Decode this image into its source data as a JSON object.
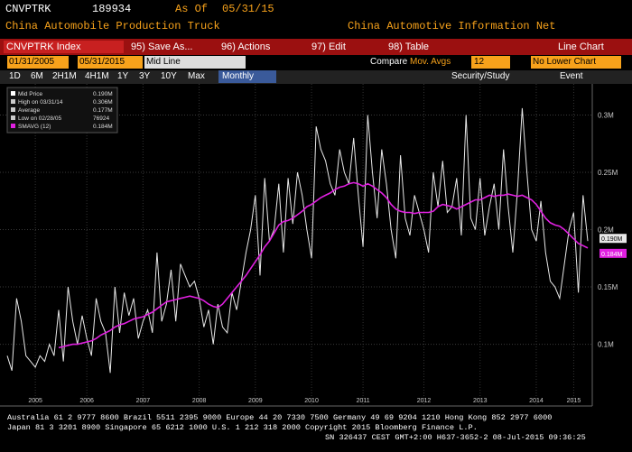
{
  "header": {
    "ticker": "CNVPTRK",
    "code": "189934",
    "as_of_label": "As Of",
    "as_of": "05/31/15",
    "name": "China Automobile Production Truck",
    "source": "China Automotive Information Net"
  },
  "toolbar": {
    "security": "CNVPTRK Index",
    "buttons": [
      "95) Save As...",
      "96) Actions",
      "97) Edit",
      "98) Table"
    ],
    "view": "Line Chart"
  },
  "controls": {
    "start": "01/31/2005",
    "end": "05/31/2015",
    "style": "Mid Line",
    "compare": "Compare",
    "studies": "Mov. Avgs",
    "period": "12",
    "lower": "No Lower Chart"
  },
  "ranges": {
    "buttons": [
      "1D",
      "6M",
      "2H1M",
      "4H1M",
      "1Y",
      "3Y",
      "10Y",
      "Max"
    ],
    "frequency": "Monthly",
    "study": "Security/Study",
    "event": "Event"
  },
  "chart_data": {
    "type": "line",
    "categories": [
      null,
      null,
      null,
      null,
      null,
      null,
      "2005",
      null,
      null,
      null,
      null,
      null,
      null,
      null,
      null,
      null,
      null,
      "2006",
      null,
      null,
      null,
      null,
      null,
      null,
      null,
      null,
      null,
      null,
      null,
      "2007",
      null,
      null,
      null,
      null,
      null,
      null,
      null,
      null,
      null,
      null,
      null,
      "2008",
      null,
      null,
      null,
      null,
      null,
      null,
      null,
      null,
      null,
      null,
      null,
      "2009",
      null,
      null,
      null,
      null,
      null,
      null,
      null,
      null,
      null,
      null,
      null,
      "2010",
      null,
      null,
      null,
      null,
      null,
      null,
      null,
      null,
      null,
      null,
      "2011",
      null,
      null,
      null,
      null,
      null,
      null,
      null,
      null,
      null,
      null,
      null,
      null,
      "2012",
      null,
      null,
      null,
      null,
      null,
      null,
      null,
      null,
      null,
      null,
      null,
      "2013",
      null,
      null,
      null,
      null,
      null,
      null,
      null,
      null,
      null,
      null,
      null,
      "2014",
      null,
      null,
      null,
      null,
      null,
      null,
      null,
      "2015",
      null,
      null,
      null
    ],
    "series": [
      {
        "name": "Mid Price",
        "color": "#e8e8e8",
        "last_label": "0.190M",
        "values": [
          0.09,
          0.077,
          0.14,
          0.12,
          0.09,
          0.085,
          0.08,
          0.09,
          0.085,
          0.1,
          0.09,
          0.13,
          0.085,
          0.15,
          0.12,
          0.1,
          0.125,
          0.105,
          0.09,
          0.14,
          0.12,
          0.11,
          0.075,
          0.15,
          0.11,
          0.145,
          0.125,
          0.14,
          0.105,
          0.12,
          0.13,
          0.11,
          0.18,
          0.12,
          0.135,
          0.165,
          0.12,
          0.17,
          0.16,
          0.15,
          0.155,
          0.14,
          0.115,
          0.13,
          0.1,
          0.135,
          0.115,
          0.11,
          0.145,
          0.13,
          0.155,
          0.18,
          0.2,
          0.23,
          0.16,
          0.245,
          0.19,
          0.2,
          0.24,
          0.18,
          0.245,
          0.205,
          0.25,
          0.23,
          0.2,
          0.175,
          0.29,
          0.27,
          0.26,
          0.24,
          0.23,
          0.27,
          0.25,
          0.24,
          0.28,
          0.23,
          0.185,
          0.3,
          0.25,
          0.21,
          0.27,
          0.24,
          0.2,
          0.175,
          0.265,
          0.21,
          0.195,
          0.23,
          0.215,
          0.2,
          0.18,
          0.25,
          0.22,
          0.26,
          0.215,
          0.22,
          0.245,
          0.195,
          0.3,
          0.21,
          0.2,
          0.245,
          0.195,
          0.22,
          0.24,
          0.2,
          0.27,
          0.22,
          0.18,
          0.235,
          0.306,
          0.25,
          0.2,
          0.19,
          0.225,
          0.18,
          0.155,
          0.15,
          0.14,
          0.17,
          0.2,
          0.215,
          0.145,
          0.23,
          0.19
        ]
      },
      {
        "name": "SMAVG (12)",
        "color": "#e020e0",
        "last_label": "0.184M",
        "values": [
          null,
          null,
          null,
          null,
          null,
          null,
          null,
          null,
          null,
          null,
          null,
          0.097,
          0.098,
          0.099,
          0.1,
          0.1,
          0.101,
          0.102,
          0.103,
          0.105,
          0.108,
          0.11,
          0.112,
          0.115,
          0.117,
          0.118,
          0.12,
          0.122,
          0.123,
          0.124,
          0.126,
          0.128,
          0.131,
          0.134,
          0.137,
          0.138,
          0.139,
          0.14,
          0.141,
          0.142,
          0.141,
          0.14,
          0.138,
          0.135,
          0.133,
          0.132,
          0.135,
          0.14,
          0.145,
          0.15,
          0.155,
          0.16,
          0.166,
          0.172,
          0.178,
          0.185,
          0.19,
          0.197,
          0.204,
          0.207,
          0.208,
          0.21,
          0.213,
          0.216,
          0.22,
          0.222,
          0.225,
          0.228,
          0.23,
          0.232,
          0.235,
          0.237,
          0.238,
          0.24,
          0.241,
          0.24,
          0.238,
          0.24,
          0.238,
          0.235,
          0.232,
          0.228,
          0.222,
          0.218,
          0.216,
          0.215,
          0.215,
          0.214,
          0.215,
          0.215,
          0.215,
          0.216,
          0.22,
          0.222,
          0.221,
          0.22,
          0.218,
          0.22,
          0.222,
          0.224,
          0.226,
          0.226,
          0.228,
          0.23,
          0.229,
          0.23,
          0.23,
          0.231,
          0.23,
          0.229,
          0.23,
          0.228,
          0.226,
          0.222,
          0.216,
          0.21,
          0.206,
          0.204,
          0.203,
          0.2,
          0.196,
          0.192,
          0.188,
          0.186,
          0.184
        ]
      }
    ],
    "stats": [
      {
        "label": "High on 03/31/14",
        "value": "0.306M"
      },
      {
        "label": "Average",
        "value": "0.177M"
      },
      {
        "label": "Low on 02/28/05",
        "value": "76924"
      }
    ],
    "ylim": [
      0.054,
      0.324
    ],
    "yticks": [
      {
        "value": 0.1,
        "label": "0.1M"
      },
      {
        "value": 0.15,
        "label": "0.15M"
      },
      {
        "value": 0.2,
        "label": "0.2M"
      },
      {
        "value": 0.25,
        "label": "0.25M"
      },
      {
        "value": 0.3,
        "label": "0.3M"
      }
    ],
    "grid": true
  },
  "footer": {
    "lines": [
      "Australia 61 2 9777 8600 Brazil 5511 2395 9000 Europe 44 20 7330 7500 Germany 49 69 9204 1210 Hong Kong 852 2977 6000",
      "Japan 81 3 3201 8900      Singapore 65 6212 1000      U.S. 1 212 318 2000      Copyright 2015 Bloomberg Finance L.P.",
      "SN 326437 CEST  GMT+2:00 H637-3652-2 08-Jul-2015 09:36:25"
    ]
  }
}
